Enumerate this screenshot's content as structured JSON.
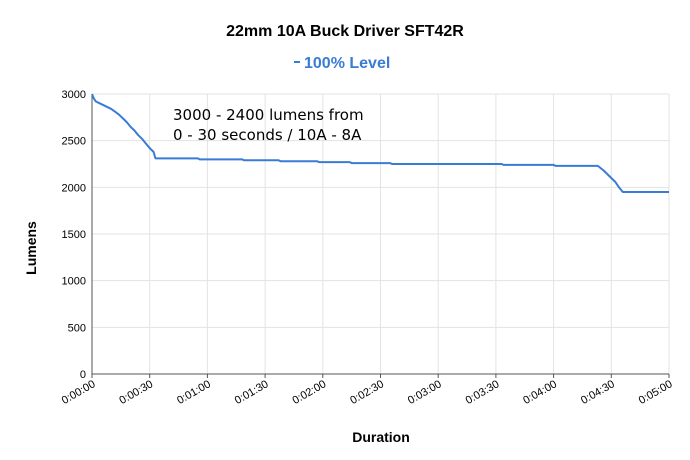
{
  "chart_data": {
    "type": "line",
    "title": "22mm 10A Buck Driver SFT42R",
    "xlabel": "Duration",
    "ylabel": "Lumens",
    "xlim": [
      0,
      300
    ],
    "ylim": [
      0,
      3000
    ],
    "x_ticks": [
      "0:00:00",
      "0:00:30",
      "0:01:00",
      "0:01:30",
      "0:02:00",
      "0:02:30",
      "0:03:00",
      "0:03:30",
      "0:04:00",
      "0:04:30",
      "0:05:00"
    ],
    "y_ticks": [
      "0",
      "500",
      "1000",
      "1500",
      "2000",
      "2500",
      "3000"
    ],
    "grid": true,
    "legend_position": "top-center",
    "annotation": [
      "3000 - 2400 lumens from",
      "0 - 30 seconds / 10A - 8A"
    ],
    "series": [
      {
        "name": "100% Level",
        "color": "#3a7bd5",
        "points": [
          [
            0,
            3000
          ],
          [
            1,
            2950
          ],
          [
            2,
            2920
          ],
          [
            4,
            2900
          ],
          [
            6,
            2880
          ],
          [
            8,
            2860
          ],
          [
            10,
            2840
          ],
          [
            12,
            2810
          ],
          [
            14,
            2780
          ],
          [
            16,
            2740
          ],
          [
            18,
            2700
          ],
          [
            20,
            2650
          ],
          [
            22,
            2610
          ],
          [
            24,
            2560
          ],
          [
            26,
            2520
          ],
          [
            28,
            2470
          ],
          [
            30,
            2420
          ],
          [
            32,
            2380
          ],
          [
            33,
            2310
          ],
          [
            55,
            2310
          ],
          [
            56,
            2300
          ],
          [
            78,
            2300
          ],
          [
            79,
            2290
          ],
          [
            97,
            2290
          ],
          [
            98,
            2280
          ],
          [
            117,
            2280
          ],
          [
            118,
            2270
          ],
          [
            134,
            2270
          ],
          [
            135,
            2260
          ],
          [
            155,
            2260
          ],
          [
            156,
            2250
          ],
          [
            213,
            2250
          ],
          [
            214,
            2240
          ],
          [
            240,
            2240
          ],
          [
            241,
            2230
          ],
          [
            263,
            2230
          ],
          [
            266,
            2180
          ],
          [
            269,
            2120
          ],
          [
            272,
            2060
          ],
          [
            274,
            2000
          ],
          [
            276,
            1950
          ],
          [
            300,
            1950
          ]
        ]
      }
    ]
  }
}
